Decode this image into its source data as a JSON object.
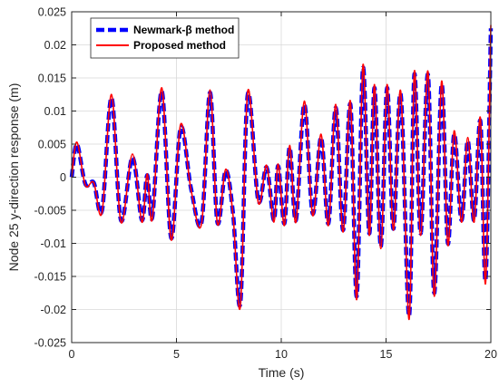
{
  "chart_data": {
    "type": "line",
    "xlabel": "Time (s)",
    "ylabel": "Node 25 y-direction response (m)",
    "xlim": [
      0,
      20
    ],
    "ylim": [
      -0.025,
      0.025
    ],
    "xticks": [
      0,
      5,
      10,
      15,
      20
    ],
    "yticks": [
      -0.025,
      -0.02,
      -0.015,
      -0.01,
      -0.005,
      0,
      0.005,
      0.01,
      0.015,
      0.02,
      0.025
    ],
    "ytick_labels": [
      "-0.025",
      "-0.02",
      "-0.015",
      "-0.01",
      "-0.005",
      "0",
      "0.005",
      "0.01",
      "0.015",
      "0.02",
      "0.025"
    ],
    "grid": true,
    "legend_position": "top-left",
    "series": [
      {
        "name": "Newmark-β method",
        "color": "#0000ff",
        "style": "dashed",
        "x": [
          0,
          0.25,
          0.65,
          1.05,
          1.45,
          1.9,
          2.35,
          2.9,
          3.35,
          3.6,
          3.85,
          4.3,
          4.75,
          5.2,
          5.7,
          6.2,
          6.6,
          6.95,
          7.35,
          7.7,
          8.05,
          8.4,
          8.9,
          9.3,
          9.65,
          9.85,
          10.15,
          10.4,
          10.7,
          11.1,
          11.5,
          11.9,
          12.25,
          12.6,
          12.95,
          13.3,
          13.6,
          13.9,
          14.2,
          14.45,
          14.75,
          15.05,
          15.35,
          15.7,
          16.1,
          16.35,
          16.65,
          17.0,
          17.3,
          17.65,
          17.95,
          18.25,
          18.6,
          18.9,
          19.2,
          19.5,
          19.75,
          20.0
        ],
        "y": [
          0,
          0.005,
          -0.001,
          -0.0008,
          -0.005,
          0.012,
          -0.0065,
          0.003,
          -0.0065,
          0.0003,
          -0.006,
          0.013,
          -0.0092,
          0.0075,
          -0.0018,
          -0.0068,
          0.0128,
          -0.0068,
          0.001,
          -0.0055,
          -0.019,
          0.0125,
          -0.0035,
          0.0015,
          -0.0065,
          0.0017,
          -0.007,
          0.0045,
          -0.0065,
          0.011,
          -0.0055,
          0.006,
          -0.007,
          0.0105,
          -0.008,
          0.011,
          -0.018,
          0.0165,
          -0.0085,
          0.0135,
          -0.0105,
          0.0135,
          -0.0078,
          0.0125,
          -0.021,
          0.0155,
          -0.0085,
          0.0155,
          -0.0175,
          0.014,
          -0.01,
          0.0065,
          -0.0065,
          0.0055,
          -0.0065,
          0.0085,
          -0.0155,
          0.0225
        ]
      },
      {
        "name": "Proposed method",
        "color": "#ff0000",
        "style": "solid",
        "x": [
          0,
          0.25,
          0.65,
          1.05,
          1.45,
          1.9,
          2.35,
          2.9,
          3.35,
          3.6,
          3.85,
          4.3,
          4.75,
          5.2,
          5.7,
          6.2,
          6.6,
          6.95,
          7.35,
          7.7,
          8.05,
          8.4,
          8.9,
          9.3,
          9.65,
          9.85,
          10.15,
          10.4,
          10.7,
          11.1,
          11.5,
          11.9,
          12.25,
          12.6,
          12.95,
          13.3,
          13.6,
          13.9,
          14.2,
          14.45,
          14.75,
          15.05,
          15.35,
          15.7,
          16.1,
          16.35,
          16.65,
          17.0,
          17.3,
          17.65,
          17.95,
          18.25,
          18.6,
          18.9,
          19.2,
          19.5,
          19.75,
          20.0
        ],
        "y": [
          0,
          0.0053,
          -0.0012,
          -0.0008,
          -0.0053,
          0.0125,
          -0.0068,
          0.0035,
          -0.0068,
          0.0005,
          -0.0063,
          0.0135,
          -0.0095,
          0.008,
          -0.002,
          -0.007,
          0.0132,
          -0.007,
          0.0012,
          -0.0058,
          -0.0195,
          0.013,
          -0.0038,
          0.0018,
          -0.0068,
          0.002,
          -0.0073,
          0.0048,
          -0.0068,
          0.0115,
          -0.0058,
          0.0065,
          -0.0073,
          0.011,
          -0.0083,
          0.0115,
          -0.0185,
          0.017,
          -0.0088,
          0.014,
          -0.0108,
          0.014,
          -0.008,
          0.013,
          -0.0215,
          0.016,
          -0.0088,
          0.016,
          -0.018,
          0.0145,
          -0.0103,
          0.007,
          -0.0068,
          0.006,
          -0.0068,
          0.009,
          -0.016,
          0.023
        ]
      }
    ]
  }
}
